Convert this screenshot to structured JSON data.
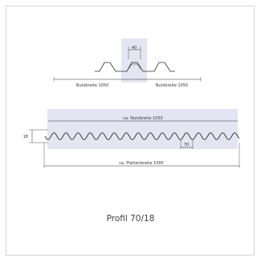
{
  "colors": {
    "highlight": "#e3e6f2",
    "line": "#2b2b2b",
    "frame": "#d6d6d6"
  },
  "top_profile": {
    "pitch_label": "40",
    "left_width_label": "Nutzbreite 1050",
    "right_width_label": "Nutzbreite 1050"
  },
  "sheet": {
    "useful_width_label": "ca. Nutzbreite 1050",
    "height_label": "18",
    "pitch_label": "70",
    "sheet_width_label": "ca. Plattenbreite 1095"
  },
  "caption": "Profil 70/18"
}
